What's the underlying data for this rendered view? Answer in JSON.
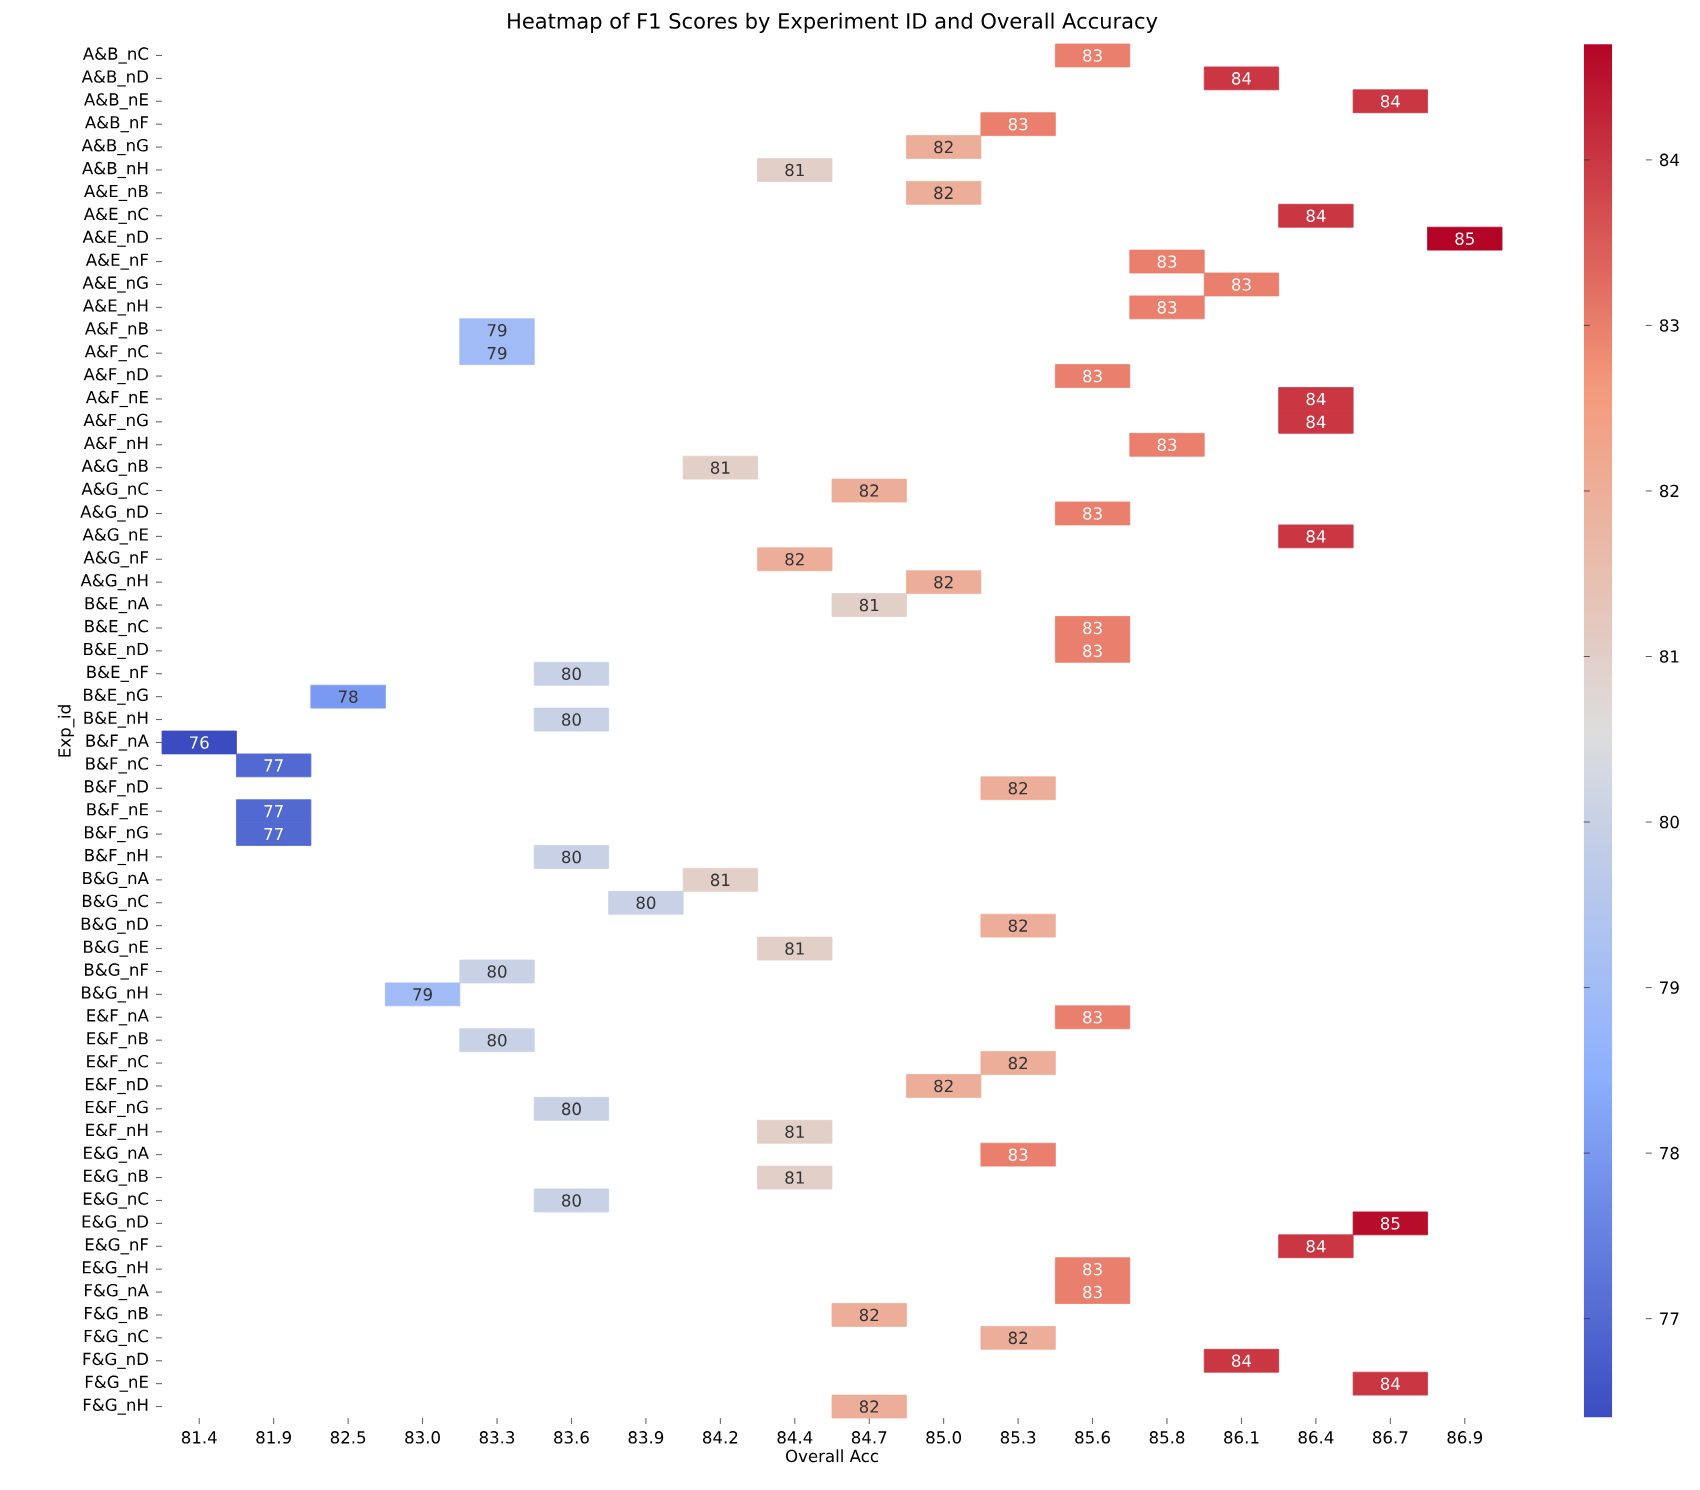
{
  "chart_data": {
    "type": "heatmap",
    "title": "Heatmap of F1 Scores by Experiment ID and Overall Accuracy",
    "xlabel": "Overall Acc",
    "ylabel": "Exp_id",
    "categories": [
      "81.4",
      "81.9",
      "82.5",
      "83.0",
      "83.3",
      "83.6",
      "83.9",
      "84.2",
      "84.4",
      "84.7",
      "85.0",
      "85.3",
      "85.6",
      "85.8",
      "86.1",
      "86.4",
      "86.7",
      "86.9"
    ],
    "y_categories": [
      "A&B_nC",
      "A&B_nD",
      "A&B_nE",
      "A&B_nF",
      "A&B_nG",
      "A&B_nH",
      "A&E_nB",
      "A&E_nC",
      "A&E_nD",
      "A&E_nF",
      "A&E_nG",
      "A&E_nH",
      "A&F_nB",
      "A&F_nC",
      "A&F_nD",
      "A&F_nE",
      "A&F_nG",
      "A&F_nH",
      "A&G_nB",
      "A&G_nC",
      "A&G_nD",
      "A&G_nE",
      "A&G_nF",
      "A&G_nH",
      "B&E_nA",
      "B&E_nC",
      "B&E_nD",
      "B&E_nF",
      "B&E_nG",
      "B&E_nH",
      "B&F_nA",
      "B&F_nC",
      "B&F_nD",
      "B&F_nE",
      "B&F_nG",
      "B&F_nH",
      "B&G_nA",
      "B&G_nC",
      "B&G_nD",
      "B&G_nE",
      "B&G_nF",
      "B&G_nH",
      "E&F_nA",
      "E&F_nB",
      "E&F_nC",
      "E&F_nD",
      "E&F_nG",
      "E&F_nH",
      "E&G_nA",
      "E&G_nB",
      "E&G_nC",
      "E&G_nD",
      "E&G_nF",
      "E&G_nH",
      "F&G_nA",
      "F&G_nB",
      "F&G_nC",
      "F&G_nD",
      "F&G_nE",
      "F&G_nH"
    ],
    "cells": [
      [
        null,
        null,
        null,
        null,
        null,
        null,
        null,
        null,
        null,
        null,
        null,
        null,
        83,
        null,
        null,
        null,
        null,
        null
      ],
      [
        null,
        null,
        null,
        null,
        null,
        null,
        null,
        null,
        null,
        null,
        null,
        null,
        null,
        null,
        84,
        null,
        null,
        null
      ],
      [
        null,
        null,
        null,
        null,
        null,
        null,
        null,
        null,
        null,
        null,
        null,
        null,
        null,
        null,
        null,
        null,
        84,
        null
      ],
      [
        null,
        null,
        null,
        null,
        null,
        null,
        null,
        null,
        null,
        null,
        null,
        83,
        null,
        null,
        null,
        null,
        null,
        null
      ],
      [
        null,
        null,
        null,
        null,
        null,
        null,
        null,
        null,
        null,
        null,
        82,
        null,
        null,
        null,
        null,
        null,
        null,
        null
      ],
      [
        null,
        null,
        null,
        null,
        null,
        null,
        null,
        null,
        81,
        null,
        null,
        null,
        null,
        null,
        null,
        null,
        null,
        null
      ],
      [
        null,
        null,
        null,
        null,
        null,
        null,
        null,
        null,
        null,
        null,
        82,
        null,
        null,
        null,
        null,
        null,
        null,
        null
      ],
      [
        null,
        null,
        null,
        null,
        null,
        null,
        null,
        null,
        null,
        null,
        null,
        null,
        null,
        null,
        null,
        84,
        null,
        null
      ],
      [
        null,
        null,
        null,
        null,
        null,
        null,
        null,
        null,
        null,
        null,
        null,
        null,
        null,
        null,
        null,
        null,
        null,
        84.7
      ],
      [
        null,
        null,
        null,
        null,
        null,
        null,
        null,
        null,
        null,
        null,
        null,
        null,
        null,
        83,
        null,
        null,
        null,
        null
      ],
      [
        null,
        null,
        null,
        null,
        null,
        null,
        null,
        null,
        null,
        null,
        null,
        null,
        null,
        null,
        83,
        null,
        null,
        null
      ],
      [
        null,
        null,
        null,
        null,
        null,
        null,
        null,
        null,
        null,
        null,
        null,
        null,
        null,
        83,
        null,
        null,
        null,
        null
      ],
      [
        null,
        null,
        null,
        null,
        79,
        null,
        null,
        null,
        null,
        null,
        null,
        null,
        null,
        null,
        null,
        null,
        null,
        null
      ],
      [
        null,
        null,
        null,
        null,
        79,
        null,
        null,
        null,
        null,
        null,
        null,
        null,
        null,
        null,
        null,
        null,
        null,
        null
      ],
      [
        null,
        null,
        null,
        null,
        null,
        null,
        null,
        null,
        null,
        null,
        null,
        null,
        83,
        null,
        null,
        null,
        null,
        null
      ],
      [
        null,
        null,
        null,
        null,
        null,
        null,
        null,
        null,
        null,
        null,
        null,
        null,
        null,
        null,
        null,
        84,
        null,
        null
      ],
      [
        null,
        null,
        null,
        null,
        null,
        null,
        null,
        null,
        null,
        null,
        null,
        null,
        null,
        null,
        null,
        84,
        null,
        null
      ],
      [
        null,
        null,
        null,
        null,
        null,
        null,
        null,
        null,
        null,
        null,
        null,
        null,
        null,
        83,
        null,
        null,
        null,
        null
      ],
      [
        null,
        null,
        null,
        null,
        null,
        null,
        null,
        81,
        null,
        null,
        null,
        null,
        null,
        null,
        null,
        null,
        null,
        null
      ],
      [
        null,
        null,
        null,
        null,
        null,
        null,
        null,
        null,
        null,
        82,
        null,
        null,
        null,
        null,
        null,
        null,
        null,
        null
      ],
      [
        null,
        null,
        null,
        null,
        null,
        null,
        null,
        null,
        null,
        null,
        null,
        null,
        83,
        null,
        null,
        null,
        null,
        null
      ],
      [
        null,
        null,
        null,
        null,
        null,
        null,
        null,
        null,
        null,
        null,
        null,
        null,
        null,
        null,
        null,
        84,
        null,
        null
      ],
      [
        null,
        null,
        null,
        null,
        null,
        null,
        null,
        null,
        82,
        null,
        null,
        null,
        null,
        null,
        null,
        null,
        null,
        null
      ],
      [
        null,
        null,
        null,
        null,
        null,
        null,
        null,
        null,
        null,
        null,
        82,
        null,
        null,
        null,
        null,
        null,
        null,
        null
      ],
      [
        null,
        null,
        null,
        null,
        null,
        null,
        null,
        null,
        null,
        81,
        null,
        null,
        null,
        null,
        null,
        null,
        null,
        null
      ],
      [
        null,
        null,
        null,
        null,
        null,
        null,
        null,
        null,
        null,
        null,
        null,
        null,
        83,
        null,
        null,
        null,
        null,
        null
      ],
      [
        null,
        null,
        null,
        null,
        null,
        null,
        null,
        null,
        null,
        null,
        null,
        null,
        83,
        null,
        null,
        null,
        null,
        null
      ],
      [
        null,
        null,
        null,
        null,
        null,
        80,
        null,
        null,
        null,
        null,
        null,
        null,
        null,
        null,
        null,
        null,
        null,
        null
      ],
      [
        null,
        null,
        78,
        null,
        null,
        null,
        null,
        null,
        null,
        null,
        null,
        null,
        null,
        null,
        null,
        null,
        null,
        null
      ],
      [
        null,
        null,
        null,
        null,
        null,
        80,
        null,
        null,
        null,
        null,
        null,
        null,
        null,
        null,
        null,
        null,
        null,
        null
      ],
      [
        76.4,
        null,
        null,
        null,
        null,
        null,
        null,
        null,
        null,
        null,
        null,
        null,
        null,
        null,
        null,
        null,
        null,
        null
      ],
      [
        null,
        77,
        null,
        null,
        null,
        null,
        null,
        null,
        null,
        null,
        null,
        null,
        null,
        null,
        null,
        null,
        null,
        null
      ],
      [
        null,
        null,
        null,
        null,
        null,
        null,
        null,
        null,
        null,
        null,
        null,
        82,
        null,
        null,
        null,
        null,
        null,
        null
      ],
      [
        null,
        77,
        null,
        null,
        null,
        null,
        null,
        null,
        null,
        null,
        null,
        null,
        null,
        null,
        null,
        null,
        null,
        null
      ],
      [
        null,
        77,
        null,
        null,
        null,
        null,
        null,
        null,
        null,
        null,
        null,
        null,
        null,
        null,
        null,
        null,
        null,
        null
      ],
      [
        null,
        null,
        null,
        null,
        null,
        80,
        null,
        null,
        null,
        null,
        null,
        null,
        null,
        null,
        null,
        null,
        null,
        null
      ],
      [
        null,
        null,
        null,
        null,
        null,
        null,
        null,
        81,
        null,
        null,
        null,
        null,
        null,
        null,
        null,
        null,
        null,
        null
      ],
      [
        null,
        null,
        null,
        null,
        null,
        null,
        80,
        null,
        null,
        null,
        null,
        null,
        null,
        null,
        null,
        null,
        null,
        null
      ],
      [
        null,
        null,
        null,
        null,
        null,
        null,
        null,
        null,
        null,
        null,
        null,
        82,
        null,
        null,
        null,
        null,
        null,
        null
      ],
      [
        null,
        null,
        null,
        null,
        null,
        null,
        null,
        null,
        81,
        null,
        null,
        null,
        null,
        null,
        null,
        null,
        null,
        null
      ],
      [
        null,
        null,
        null,
        null,
        80,
        null,
        null,
        null,
        null,
        null,
        null,
        null,
        null,
        null,
        null,
        null,
        null,
        null
      ],
      [
        null,
        null,
        null,
        79,
        null,
        null,
        null,
        null,
        null,
        null,
        null,
        null,
        null,
        null,
        null,
        null,
        null,
        null
      ],
      [
        null,
        null,
        null,
        null,
        null,
        null,
        null,
        null,
        null,
        null,
        null,
        null,
        83,
        null,
        null,
        null,
        null,
        null
      ],
      [
        null,
        null,
        null,
        null,
        80,
        null,
        null,
        null,
        null,
        null,
        null,
        null,
        null,
        null,
        null,
        null,
        null,
        null
      ],
      [
        null,
        null,
        null,
        null,
        null,
        null,
        null,
        null,
        null,
        null,
        null,
        82,
        null,
        null,
        null,
        null,
        null,
        null
      ],
      [
        null,
        null,
        null,
        null,
        null,
        null,
        null,
        null,
        null,
        null,
        82,
        null,
        null,
        null,
        null,
        null,
        null,
        null
      ],
      [
        null,
        null,
        null,
        null,
        null,
        80,
        null,
        null,
        null,
        null,
        null,
        null,
        null,
        null,
        null,
        null,
        null,
        null
      ],
      [
        null,
        null,
        null,
        null,
        null,
        null,
        null,
        null,
        81,
        null,
        null,
        null,
        null,
        null,
        null,
        null,
        null,
        null
      ],
      [
        null,
        null,
        null,
        null,
        null,
        null,
        null,
        null,
        null,
        null,
        null,
        83,
        null,
        null,
        null,
        null,
        null,
        null
      ],
      [
        null,
        null,
        null,
        null,
        null,
        null,
        null,
        null,
        81,
        null,
        null,
        null,
        null,
        null,
        null,
        null,
        null,
        null
      ],
      [
        null,
        null,
        null,
        null,
        null,
        80,
        null,
        null,
        null,
        null,
        null,
        null,
        null,
        null,
        null,
        null,
        null,
        null
      ],
      [
        null,
        null,
        null,
        null,
        null,
        null,
        null,
        null,
        null,
        null,
        null,
        null,
        null,
        null,
        null,
        null,
        84.6,
        null
      ],
      [
        null,
        null,
        null,
        null,
        null,
        null,
        null,
        null,
        null,
        null,
        null,
        null,
        null,
        null,
        null,
        84,
        null,
        null
      ],
      [
        null,
        null,
        null,
        null,
        null,
        null,
        null,
        null,
        null,
        null,
        null,
        null,
        83,
        null,
        null,
        null,
        null,
        null
      ],
      [
        null,
        null,
        null,
        null,
        null,
        null,
        null,
        null,
        null,
        null,
        null,
        null,
        83,
        null,
        null,
        null,
        null,
        null
      ],
      [
        null,
        null,
        null,
        null,
        null,
        null,
        null,
        null,
        null,
        82,
        null,
        null,
        null,
        null,
        null,
        null,
        null,
        null
      ],
      [
        null,
        null,
        null,
        null,
        null,
        null,
        null,
        null,
        null,
        null,
        null,
        82,
        null,
        null,
        null,
        null,
        null,
        null
      ],
      [
        null,
        null,
        null,
        null,
        null,
        null,
        null,
        null,
        null,
        null,
        null,
        null,
        null,
        null,
        84,
        null,
        null,
        null
      ],
      [
        null,
        null,
        null,
        null,
        null,
        null,
        null,
        null,
        null,
        null,
        null,
        null,
        null,
        null,
        null,
        null,
        84,
        null
      ],
      [
        null,
        null,
        null,
        null,
        null,
        null,
        null,
        null,
        null,
        82,
        null,
        null,
        null,
        null,
        null,
        null,
        null,
        null
      ]
    ],
    "cell_labels": [
      [
        null,
        null,
        null,
        null,
        null,
        null,
        null,
        null,
        null,
        null,
        null,
        null,
        "83",
        null,
        null,
        null,
        null,
        null
      ],
      [
        null,
        null,
        null,
        null,
        null,
        null,
        null,
        null,
        null,
        null,
        null,
        null,
        null,
        null,
        "84",
        null,
        null,
        null
      ],
      [
        null,
        null,
        null,
        null,
        null,
        null,
        null,
        null,
        null,
        null,
        null,
        null,
        null,
        null,
        null,
        null,
        "84",
        null
      ],
      [
        null,
        null,
        null,
        null,
        null,
        null,
        null,
        null,
        null,
        null,
        null,
        "83",
        null,
        null,
        null,
        null,
        null,
        null
      ],
      [
        null,
        null,
        null,
        null,
        null,
        null,
        null,
        null,
        null,
        null,
        "82",
        null,
        null,
        null,
        null,
        null,
        null,
        null
      ],
      [
        null,
        null,
        null,
        null,
        null,
        null,
        null,
        null,
        "81",
        null,
        null,
        null,
        null,
        null,
        null,
        null,
        null,
        null
      ],
      [
        null,
        null,
        null,
        null,
        null,
        null,
        null,
        null,
        null,
        null,
        "82",
        null,
        null,
        null,
        null,
        null,
        null,
        null
      ],
      [
        null,
        null,
        null,
        null,
        null,
        null,
        null,
        null,
        null,
        null,
        null,
        null,
        null,
        null,
        null,
        "84",
        null,
        null
      ],
      [
        null,
        null,
        null,
        null,
        null,
        null,
        null,
        null,
        null,
        null,
        null,
        null,
        null,
        null,
        null,
        null,
        null,
        "85"
      ],
      [
        null,
        null,
        null,
        null,
        null,
        null,
        null,
        null,
        null,
        null,
        null,
        null,
        null,
        "83",
        null,
        null,
        null,
        null
      ],
      [
        null,
        null,
        null,
        null,
        null,
        null,
        null,
        null,
        null,
        null,
        null,
        null,
        null,
        null,
        "83",
        null,
        null,
        null
      ],
      [
        null,
        null,
        null,
        null,
        null,
        null,
        null,
        null,
        null,
        null,
        null,
        null,
        null,
        "83",
        null,
        null,
        null,
        null
      ],
      [
        null,
        null,
        null,
        null,
        "79",
        null,
        null,
        null,
        null,
        null,
        null,
        null,
        null,
        null,
        null,
        null,
        null,
        null
      ],
      [
        null,
        null,
        null,
        null,
        "79",
        null,
        null,
        null,
        null,
        null,
        null,
        null,
        null,
        null,
        null,
        null,
        null,
        null
      ],
      [
        null,
        null,
        null,
        null,
        null,
        null,
        null,
        null,
        null,
        null,
        null,
        null,
        "83",
        null,
        null,
        null,
        null,
        null
      ],
      [
        null,
        null,
        null,
        null,
        null,
        null,
        null,
        null,
        null,
        null,
        null,
        null,
        null,
        null,
        null,
        "84",
        null,
        null
      ],
      [
        null,
        null,
        null,
        null,
        null,
        null,
        null,
        null,
        null,
        null,
        null,
        null,
        null,
        null,
        null,
        "84",
        null,
        null
      ],
      [
        null,
        null,
        null,
        null,
        null,
        null,
        null,
        null,
        null,
        null,
        null,
        null,
        null,
        "83",
        null,
        null,
        null,
        null
      ],
      [
        null,
        null,
        null,
        null,
        null,
        null,
        null,
        "81",
        null,
        null,
        null,
        null,
        null,
        null,
        null,
        null,
        null,
        null
      ],
      [
        null,
        null,
        null,
        null,
        null,
        null,
        null,
        null,
        null,
        "82",
        null,
        null,
        null,
        null,
        null,
        null,
        null,
        null
      ],
      [
        null,
        null,
        null,
        null,
        null,
        null,
        null,
        null,
        null,
        null,
        null,
        null,
        "83",
        null,
        null,
        null,
        null,
        null
      ],
      [
        null,
        null,
        null,
        null,
        null,
        null,
        null,
        null,
        null,
        null,
        null,
        null,
        null,
        null,
        null,
        "84",
        null,
        null
      ],
      [
        null,
        null,
        null,
        null,
        null,
        null,
        null,
        null,
        "82",
        null,
        null,
        null,
        null,
        null,
        null,
        null,
        null,
        null
      ],
      [
        null,
        null,
        null,
        null,
        null,
        null,
        null,
        null,
        null,
        null,
        "82",
        null,
        null,
        null,
        null,
        null,
        null,
        null
      ],
      [
        null,
        null,
        null,
        null,
        null,
        null,
        null,
        null,
        null,
        "81",
        null,
        null,
        null,
        null,
        null,
        null,
        null,
        null
      ],
      [
        null,
        null,
        null,
        null,
        null,
        null,
        null,
        null,
        null,
        null,
        null,
        null,
        "83",
        null,
        null,
        null,
        null,
        null
      ],
      [
        null,
        null,
        null,
        null,
        null,
        null,
        null,
        null,
        null,
        null,
        null,
        null,
        "83",
        null,
        null,
        null,
        null,
        null
      ],
      [
        null,
        null,
        null,
        null,
        null,
        "80",
        null,
        null,
        null,
        null,
        null,
        null,
        null,
        null,
        null,
        null,
        null,
        null
      ],
      [
        null,
        null,
        "78",
        null,
        null,
        null,
        null,
        null,
        null,
        null,
        null,
        null,
        null,
        null,
        null,
        null,
        null,
        null
      ],
      [
        null,
        null,
        null,
        null,
        null,
        "80",
        null,
        null,
        null,
        null,
        null,
        null,
        null,
        null,
        null,
        null,
        null,
        null
      ],
      [
        "76",
        null,
        null,
        null,
        null,
        null,
        null,
        null,
        null,
        null,
        null,
        null,
        null,
        null,
        null,
        null,
        null,
        null
      ],
      [
        null,
        "77",
        null,
        null,
        null,
        null,
        null,
        null,
        null,
        null,
        null,
        null,
        null,
        null,
        null,
        null,
        null,
        null
      ],
      [
        null,
        null,
        null,
        null,
        null,
        null,
        null,
        null,
        null,
        null,
        null,
        "82",
        null,
        null,
        null,
        null,
        null,
        null
      ],
      [
        null,
        "77",
        null,
        null,
        null,
        null,
        null,
        null,
        null,
        null,
        null,
        null,
        null,
        null,
        null,
        null,
        null,
        null
      ],
      [
        null,
        "77",
        null,
        null,
        null,
        null,
        null,
        null,
        null,
        null,
        null,
        null,
        null,
        null,
        null,
        null,
        null,
        null
      ],
      [
        null,
        null,
        null,
        null,
        null,
        "80",
        null,
        null,
        null,
        null,
        null,
        null,
        null,
        null,
        null,
        null,
        null,
        null
      ],
      [
        null,
        null,
        null,
        null,
        null,
        null,
        null,
        "81",
        null,
        null,
        null,
        null,
        null,
        null,
        null,
        null,
        null,
        null
      ],
      [
        null,
        null,
        null,
        null,
        null,
        null,
        "80",
        null,
        null,
        null,
        null,
        null,
        null,
        null,
        null,
        null,
        null,
        null
      ],
      [
        null,
        null,
        null,
        null,
        null,
        null,
        null,
        null,
        null,
        null,
        null,
        "82",
        null,
        null,
        null,
        null,
        null,
        null
      ],
      [
        null,
        null,
        null,
        null,
        null,
        null,
        null,
        null,
        "81",
        null,
        null,
        null,
        null,
        null,
        null,
        null,
        null,
        null
      ],
      [
        null,
        null,
        null,
        null,
        "80",
        null,
        null,
        null,
        null,
        null,
        null,
        null,
        null,
        null,
        null,
        null,
        null,
        null
      ],
      [
        null,
        null,
        null,
        "79",
        null,
        null,
        null,
        null,
        null,
        null,
        null,
        null,
        null,
        null,
        null,
        null,
        null,
        null
      ],
      [
        null,
        null,
        null,
        null,
        null,
        null,
        null,
        null,
        null,
        null,
        null,
        null,
        "83",
        null,
        null,
        null,
        null,
        null
      ],
      [
        null,
        null,
        null,
        null,
        "80",
        null,
        null,
        null,
        null,
        null,
        null,
        null,
        null,
        null,
        null,
        null,
        null,
        null
      ],
      [
        null,
        null,
        null,
        null,
        null,
        null,
        null,
        null,
        null,
        null,
        null,
        "82",
        null,
        null,
        null,
        null,
        null,
        null
      ],
      [
        null,
        null,
        null,
        null,
        null,
        null,
        null,
        null,
        null,
        null,
        "82",
        null,
        null,
        null,
        null,
        null,
        null,
        null
      ],
      [
        null,
        null,
        null,
        null,
        null,
        "80",
        null,
        null,
        null,
        null,
        null,
        null,
        null,
        null,
        null,
        null,
        null,
        null
      ],
      [
        null,
        null,
        null,
        null,
        null,
        null,
        null,
        null,
        "81",
        null,
        null,
        null,
        null,
        null,
        null,
        null,
        null,
        null
      ],
      [
        null,
        null,
        null,
        null,
        null,
        null,
        null,
        null,
        null,
        null,
        null,
        "83",
        null,
        null,
        null,
        null,
        null,
        null
      ],
      [
        null,
        null,
        null,
        null,
        null,
        null,
        null,
        null,
        "81",
        null,
        null,
        null,
        null,
        null,
        null,
        null,
        null,
        null
      ],
      [
        null,
        null,
        null,
        null,
        null,
        "80",
        null,
        null,
        null,
        null,
        null,
        null,
        null,
        null,
        null,
        null,
        null,
        null
      ],
      [
        null,
        null,
        null,
        null,
        null,
        null,
        null,
        null,
        null,
        null,
        null,
        null,
        null,
        null,
        null,
        null,
        "85",
        null
      ],
      [
        null,
        null,
        null,
        null,
        null,
        null,
        null,
        null,
        null,
        null,
        null,
        null,
        null,
        null,
        null,
        "84",
        null,
        null
      ],
      [
        null,
        null,
        null,
        null,
        null,
        null,
        null,
        null,
        null,
        null,
        null,
        null,
        "83",
        null,
        null,
        null,
        null,
        null
      ],
      [
        null,
        null,
        null,
        null,
        null,
        null,
        null,
        null,
        null,
        null,
        null,
        null,
        "83",
        null,
        null,
        null,
        null,
        null
      ],
      [
        null,
        null,
        null,
        null,
        null,
        null,
        null,
        null,
        null,
        "82",
        null,
        null,
        null,
        null,
        null,
        null,
        null,
        null
      ],
      [
        null,
        null,
        null,
        null,
        null,
        null,
        null,
        null,
        null,
        null,
        null,
        "82",
        null,
        null,
        null,
        null,
        null,
        null
      ],
      [
        null,
        null,
        null,
        null,
        null,
        null,
        null,
        null,
        null,
        null,
        null,
        null,
        null,
        null,
        "84",
        null,
        null,
        null
      ],
      [
        null,
        null,
        null,
        null,
        null,
        null,
        null,
        null,
        null,
        null,
        null,
        null,
        null,
        null,
        null,
        null,
        "84",
        null
      ],
      [
        null,
        null,
        null,
        null,
        null,
        null,
        null,
        null,
        null,
        "82",
        null,
        null,
        null,
        null,
        null,
        null,
        null,
        null
      ]
    ],
    "clim": [
      76.4,
      84.7
    ],
    "cticks": [
      77,
      78,
      79,
      80,
      81,
      82,
      83,
      84
    ]
  }
}
